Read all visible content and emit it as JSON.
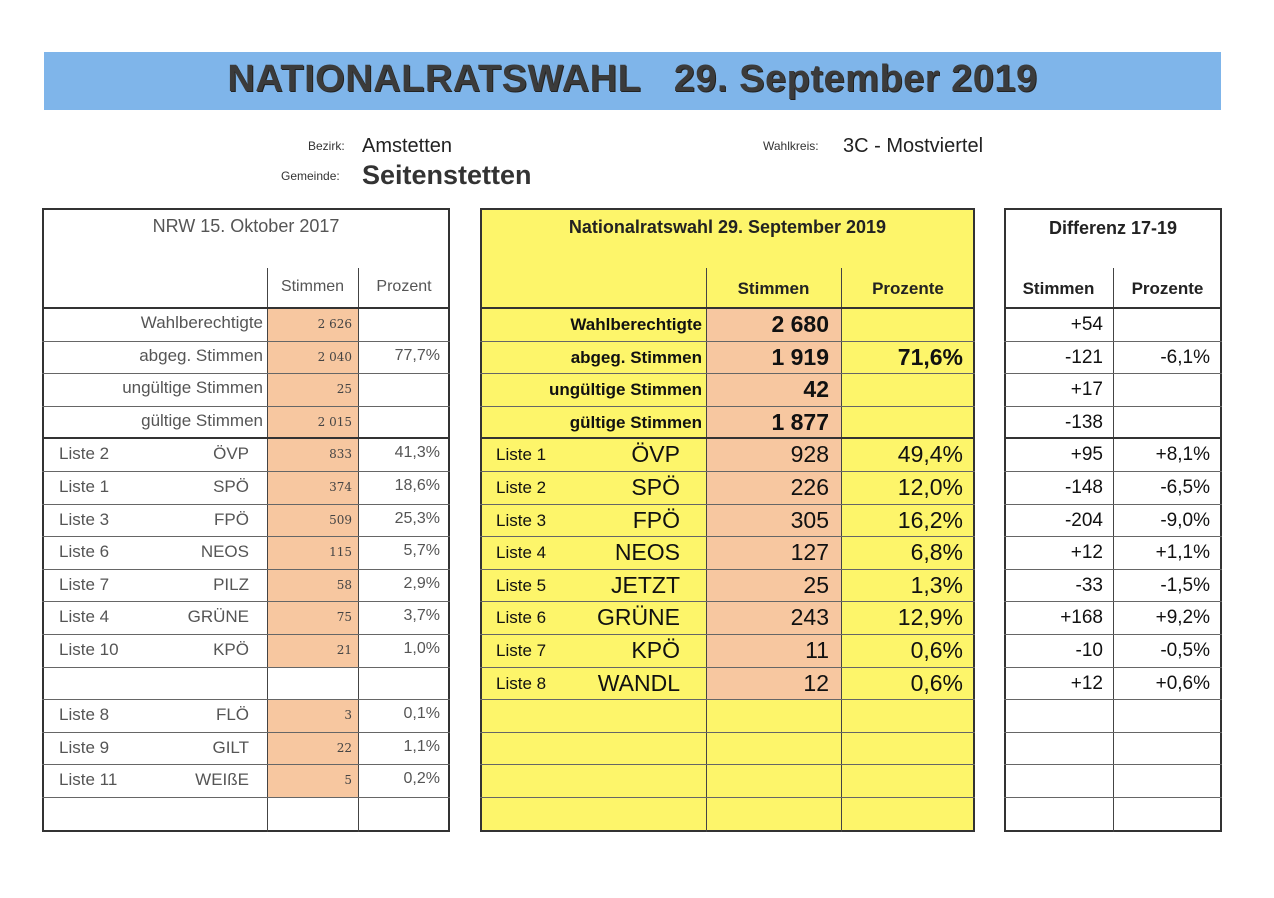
{
  "header": {
    "title": "NATIONALRATSWAHL   29. September 2019",
    "bezirk_label": "Bezirk:",
    "bezirk_value": "Amstetten",
    "gemeinde_label": "Gemeinde:",
    "gemeinde_value": "Seitenstetten",
    "wahlkreis_label": "Wahlkreis:",
    "wahlkreis_value": "3C - Mostviertel"
  },
  "left": {
    "title": "NRW 15. Oktober 2017",
    "col_stimmen": "Stimmen",
    "col_prozent": "Prozent",
    "summary": [
      {
        "label": "Wahlberechtigte",
        "stimmen": "2 626",
        "prozent": ""
      },
      {
        "label": "abgeg. Stimmen",
        "stimmen": "2 040",
        "prozent": "77,7%"
      },
      {
        "label": "ungültige Stimmen",
        "stimmen": "25",
        "prozent": ""
      },
      {
        "label": "gültige Stimmen",
        "stimmen": "2 015",
        "prozent": ""
      }
    ],
    "parties": [
      {
        "liste": "Liste 2",
        "partei": "ÖVP",
        "stimmen": "833",
        "prozent": "41,3%"
      },
      {
        "liste": "Liste 1",
        "partei": "SPÖ",
        "stimmen": "374",
        "prozent": "18,6%"
      },
      {
        "liste": "Liste 3",
        "partei": "FPÖ",
        "stimmen": "509",
        "prozent": "25,3%"
      },
      {
        "liste": "Liste 6",
        "partei": "NEOS",
        "stimmen": "115",
        "prozent": "5,7%"
      },
      {
        "liste": "Liste 7",
        "partei": "PILZ",
        "stimmen": "58",
        "prozent": "2,9%"
      },
      {
        "liste": "Liste 4",
        "partei": "GRÜNE",
        "stimmen": "75",
        "prozent": "3,7%"
      },
      {
        "liste": "Liste 10",
        "partei": "KPÖ",
        "stimmen": "21",
        "prozent": "1,0%"
      },
      {
        "liste": "",
        "partei": "",
        "stimmen": "",
        "prozent": ""
      },
      {
        "liste": "Liste 8",
        "partei": "FLÖ",
        "stimmen": "3",
        "prozent": "0,1%"
      },
      {
        "liste": "Liste 9",
        "partei": "GILT",
        "stimmen": "22",
        "prozent": "1,1%"
      },
      {
        "liste": "Liste 11",
        "partei": "WEIßE",
        "stimmen": "5",
        "prozent": "0,2%"
      },
      {
        "liste": "",
        "partei": "",
        "stimmen": "",
        "prozent": ""
      }
    ]
  },
  "middle": {
    "title": "Nationalratswahl 29. September 2019",
    "col_stimmen": "Stimmen",
    "col_prozente": "Prozente",
    "summary": [
      {
        "label": "Wahlberechtigte",
        "stimmen": "2 680",
        "prozent": ""
      },
      {
        "label": "abgeg. Stimmen",
        "stimmen": "1 919",
        "prozent": "71,6%"
      },
      {
        "label": "ungültige Stimmen",
        "stimmen": "42",
        "prozent": ""
      },
      {
        "label": "gültige Stimmen",
        "stimmen": "1 877",
        "prozent": ""
      }
    ],
    "parties": [
      {
        "liste": "Liste 1",
        "partei": "ÖVP",
        "stimmen": "928",
        "prozent": "49,4%"
      },
      {
        "liste": "Liste 2",
        "partei": "SPÖ",
        "stimmen": "226",
        "prozent": "12,0%"
      },
      {
        "liste": "Liste 3",
        "partei": "FPÖ",
        "stimmen": "305",
        "prozent": "16,2%"
      },
      {
        "liste": "Liste 4",
        "partei": "NEOS",
        "stimmen": "127",
        "prozent": "6,8%"
      },
      {
        "liste": "Liste 5",
        "partei": "JETZT",
        "stimmen": "25",
        "prozent": "1,3%"
      },
      {
        "liste": "Liste 6",
        "partei": "GRÜNE",
        "stimmen": "243",
        "prozent": "12,9%"
      },
      {
        "liste": "Liste 7",
        "partei": "KPÖ",
        "stimmen": "11",
        "prozent": "0,6%"
      },
      {
        "liste": "Liste 8",
        "partei": "WANDL",
        "stimmen": "12",
        "prozent": "0,6%"
      },
      {
        "liste": "",
        "partei": "",
        "stimmen": "",
        "prozent": ""
      },
      {
        "liste": "",
        "partei": "",
        "stimmen": "",
        "prozent": ""
      },
      {
        "liste": "",
        "partei": "",
        "stimmen": "",
        "prozent": ""
      },
      {
        "liste": "",
        "partei": "",
        "stimmen": "",
        "prozent": ""
      }
    ]
  },
  "right": {
    "title": "Differenz 17-19",
    "col_stimmen": "Stimmen",
    "col_prozente": "Prozente",
    "summary": [
      {
        "stimmen": "+54",
        "prozent": ""
      },
      {
        "stimmen": "-121",
        "prozent": "-6,1%"
      },
      {
        "stimmen": "+17",
        "prozent": ""
      },
      {
        "stimmen": "-138",
        "prozent": ""
      }
    ],
    "parties": [
      {
        "stimmen": "+95",
        "prozent": "+8,1%"
      },
      {
        "stimmen": "-148",
        "prozent": "-6,5%"
      },
      {
        "stimmen": "-204",
        "prozent": "-9,0%"
      },
      {
        "stimmen": "+12",
        "prozent": "+1,1%"
      },
      {
        "stimmen": "-33",
        "prozent": "-1,5%"
      },
      {
        "stimmen": "+168",
        "prozent": "+9,2%"
      },
      {
        "stimmen": "-10",
        "prozent": "-0,5%"
      },
      {
        "stimmen": "+12",
        "prozent": "+0,6%"
      },
      {
        "stimmen": "",
        "prozent": ""
      },
      {
        "stimmen": "",
        "prozent": ""
      },
      {
        "stimmen": "",
        "prozent": ""
      },
      {
        "stimmen": "",
        "prozent": ""
      }
    ]
  },
  "colors": {
    "banner": "#7fb5ea",
    "highlight": "#f7c7a0",
    "middle_bg": "#fdf56a"
  }
}
